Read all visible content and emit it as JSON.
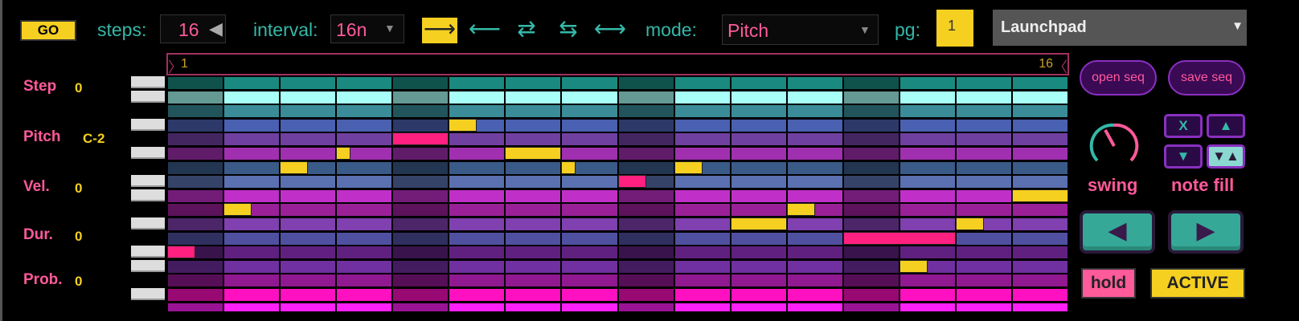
{
  "toolbar": {
    "go_label": "GO",
    "steps_label": "steps:",
    "steps_value": "16",
    "interval_label": "interval:",
    "interval_value": "16n",
    "directions": [
      {
        "glyph": "⟶",
        "name": "forward",
        "selected": true
      },
      {
        "glyph": "⟵",
        "name": "backward",
        "selected": false
      },
      {
        "glyph": "⇄",
        "name": "pingpong",
        "selected": false
      },
      {
        "glyph": "⇆",
        "name": "pingpong-reverse",
        "selected": false
      },
      {
        "glyph": "⟷",
        "name": "random",
        "selected": false
      }
    ],
    "mode_label": "mode:",
    "mode_value": "Pitch",
    "page_label": "pg:",
    "page_value": "1",
    "device_value": "Launchpad"
  },
  "ruler": {
    "start": "1",
    "end": "16"
  },
  "info": [
    {
      "label": "Step",
      "value": "0"
    },
    {
      "label": "Pitch",
      "value": "C-2"
    },
    {
      "label": "Vel.",
      "value": "0"
    },
    {
      "label": "Dur.",
      "value": "0"
    },
    {
      "label": "Prob.",
      "value": "0"
    }
  ],
  "grid": {
    "columns": 16,
    "accent_columns": [
      0,
      4,
      8,
      12
    ],
    "row_colors": [
      "#1a8a80",
      "#a8fff8",
      "#3a8c98",
      "#4a60b0",
      "#7040a0",
      "#a030b0",
      "#3a5a88",
      "#5a70b0",
      "#c030c8",
      "#9a2098",
      "#8040b0",
      "#5050a0",
      "#602080",
      "#7030a0",
      "#901890",
      "#ff10c0",
      "#ff20f8"
    ],
    "white_keys": [
      true,
      true,
      false,
      true,
      false,
      true,
      false,
      true,
      true,
      false,
      true,
      false,
      true,
      true,
      false,
      true,
      false
    ],
    "notes": [
      {
        "step": 0,
        "row": 12,
        "length": 0.5
      },
      {
        "step": 1,
        "row": 9,
        "length": 0.5
      },
      {
        "step": 2,
        "row": 6,
        "length": 0.5
      },
      {
        "step": 3,
        "row": 5,
        "length": 0.25
      },
      {
        "step": 4,
        "row": 4,
        "length": 1
      },
      {
        "step": 5,
        "row": 3,
        "length": 0.5
      },
      {
        "step": 6,
        "row": 5,
        "length": 1
      },
      {
        "step": 7,
        "row": 6,
        "length": 0.25
      },
      {
        "step": 8,
        "row": 7,
        "length": 0.5
      },
      {
        "step": 9,
        "row": 6,
        "length": 0.5
      },
      {
        "step": 10,
        "row": 10,
        "length": 1
      },
      {
        "step": 11,
        "row": 9,
        "length": 0.5
      },
      {
        "step": 12,
        "row": 11,
        "length": 2
      },
      {
        "step": 13,
        "row": 13,
        "length": 0.5
      },
      {
        "step": 14,
        "row": 10,
        "length": 0.5
      },
      {
        "step": 15,
        "row": 8,
        "length": 1
      }
    ],
    "note_color": "#f5d020",
    "accent_note_color": "#ff2080"
  },
  "side": {
    "open_label": "open seq",
    "save_label": "save seq",
    "swing_label": "swing",
    "swing_value": 0.35,
    "notefill_label": "note fill",
    "notefill_buttons": [
      "X",
      "▲",
      "▼",
      "▼▲"
    ],
    "prev_glyph": "◀",
    "next_glyph": "▶",
    "hold_label": "hold",
    "active_label": "ACTIVE"
  }
}
